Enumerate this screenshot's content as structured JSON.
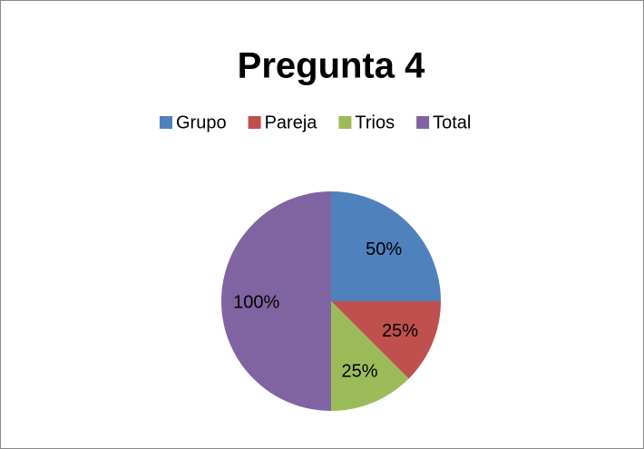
{
  "chart_data": {
    "type": "pie",
    "title": "Pregunta 4",
    "categories": [
      "Grupo",
      "Pareja",
      "Trios",
      "Total"
    ],
    "values": [
      50,
      25,
      25,
      100
    ],
    "value_labels": [
      "50%",
      "25%",
      "25%",
      "100%"
    ],
    "colors": [
      "#4f81bd",
      "#c0504d",
      "#9bbb59",
      "#8064a2"
    ],
    "legend": "top"
  }
}
